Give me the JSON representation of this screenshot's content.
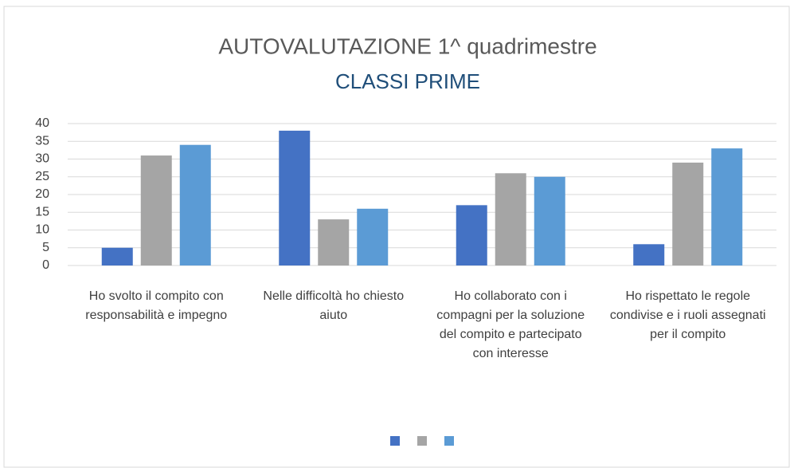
{
  "chart_data": {
    "type": "bar",
    "title": "AUTOVALUTAZIONE  1^ quadrimestre",
    "subtitle": "CLASSI PRIME",
    "categories": [
      "Ho svolto il compito con responsabilità e impegno",
      "Nelle difficoltà ho chiesto aiuto",
      "Ho collaborato con i compagni per la soluzione del compito e partecipato con interesse",
      "Ho rispettato le regole condivise e i ruoli assegnati per il compito"
    ],
    "series": [
      {
        "color": "#4472c4",
        "values": [
          5,
          38,
          17,
          6
        ]
      },
      {
        "color": "#a5a5a5",
        "values": [
          31,
          13,
          26,
          29
        ]
      },
      {
        "color": "#5b9bd5",
        "values": [
          34,
          16,
          25,
          33
        ]
      }
    ],
    "ylim": [
      0,
      40
    ],
    "yticks": [
      0,
      5,
      10,
      15,
      20,
      25,
      30,
      35,
      40
    ],
    "grid": true,
    "legend": "bottom"
  }
}
